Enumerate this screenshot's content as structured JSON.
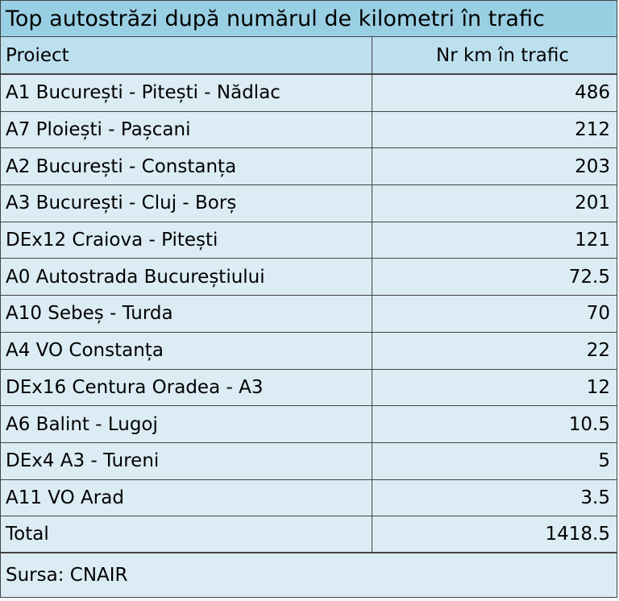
{
  "table": {
    "title": "Top autostrăzi după numărul de kilometri în trafic",
    "header": {
      "name": "Proiect",
      "value": "Nr km în trafic"
    },
    "rows": [
      {
        "name": "A1 București - Pitești - Nădlac",
        "value": "486"
      },
      {
        "name": "A7 Ploiești - Pașcani",
        "value": "212"
      },
      {
        "name": "A2 București - Constanța",
        "value": "203"
      },
      {
        "name": "A3 București - Cluj - Borș",
        "value": "201"
      },
      {
        "name": "DEx12 Craiova - Pitești",
        "value": "121"
      },
      {
        "name": "A0 Autostrada Bucureștiului",
        "value": "72.5"
      },
      {
        "name": "A10 Sebeș - Turda",
        "value": "70"
      },
      {
        "name": "A4 VO Constanța",
        "value": "22"
      },
      {
        "name": "DEx16 Centura Oradea - A3",
        "value": "12"
      },
      {
        "name": "A6 Balint - Lugoj",
        "value": "10.5"
      },
      {
        "name": "DEx4 A3 - Tureni",
        "value": "5"
      },
      {
        "name": "A11  VO Arad",
        "value": "3.5"
      }
    ],
    "total": {
      "name": "Total",
      "value": "1418.5"
    },
    "source": "Sursa: CNAIR"
  },
  "colors": {
    "title_bg": "#99cfe3",
    "header_bg": "#bde0ee",
    "cell_bg": "#dcecf4",
    "border": "#444444"
  }
}
